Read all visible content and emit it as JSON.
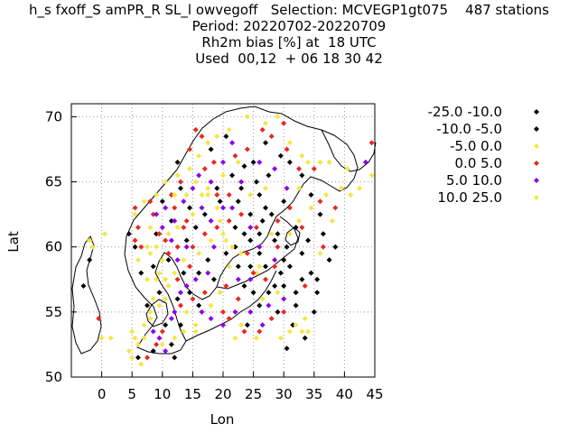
{
  "title": {
    "line1": "h_s fxoff_S amPR_R SL_l owvegoff   Selection: MCVEGP1gt075    487 stations",
    "line2": "Period: 20220702-20220709",
    "line3": "Rh2m bias [%] at  18 UTC",
    "line4": "Used  00,12  + 06 18 30 42"
  },
  "chart_data": {
    "type": "scatter",
    "xlabel": "Lon",
    "ylabel": "Lat",
    "xlim": [
      -5,
      45
    ],
    "ylim": [
      50,
      71
    ],
    "xticks": [
      0,
      5,
      10,
      15,
      20,
      25,
      30,
      35,
      40,
      45
    ],
    "yticks": [
      50,
      55,
      60,
      65,
      70
    ],
    "grid": true,
    "legend_position": "right",
    "map_background": "coastline outline of northern Europe / Scandinavia",
    "series": [
      {
        "name": "-25.0 -10.0",
        "color": "#000000",
        "points": [
          [
            33.5,
            53.0
          ],
          [
            30.5,
            52.2
          ],
          [
            31.5,
            54.0
          ],
          [
            35.0,
            55.0
          ],
          [
            29.5,
            58.0
          ],
          [
            27.5,
            56.5
          ],
          [
            35.5,
            56.5
          ],
          [
            37.5,
            59.0
          ],
          [
            38.5,
            60.0
          ],
          [
            36.5,
            61.0
          ],
          [
            33.0,
            59.5
          ],
          [
            32.0,
            61.5
          ],
          [
            29.0,
            61.0
          ],
          [
            27.0,
            63.0
          ],
          [
            26.0,
            64.0
          ],
          [
            24.5,
            62.5
          ],
          [
            22.5,
            63.5
          ],
          [
            27.5,
            65.5
          ],
          [
            25.0,
            66.5
          ],
          [
            23.5,
            66.2
          ],
          [
            22.0,
            61.5
          ],
          [
            22.5,
            58.5
          ],
          [
            23.5,
            57.0
          ],
          [
            24.5,
            58.5
          ],
          [
            24.0,
            54.0
          ],
          [
            19.5,
            63.5
          ],
          [
            14.0,
            60.5
          ],
          [
            16.0,
            58.0
          ],
          [
            12.5,
            56.0
          ],
          [
            9.5,
            56.5
          ],
          [
            11.0,
            59.0
          ],
          [
            12.0,
            51.5
          ],
          [
            8.5,
            52.0
          ],
          [
            6.5,
            58.0
          ],
          [
            5.5,
            60.0
          ],
          [
            10.0,
            63.5
          ],
          [
            13.0,
            64.5
          ],
          [
            12.5,
            66.5
          ],
          [
            26.0,
            61.0
          ],
          [
            28.5,
            60.5
          ],
          [
            30.5,
            60.0
          ],
          [
            31.0,
            58.5
          ],
          [
            34.5,
            58.0
          ],
          [
            32.0,
            56.5
          ],
          [
            29.0,
            55.0
          ],
          [
            26.0,
            55.5
          ],
          [
            28.5,
            57.0
          ]
        ]
      },
      {
        "name": "-10.0 -5.0",
        "color": "#000000",
        "points": [
          [
            32.0,
            55.5
          ],
          [
            33.0,
            57.5
          ],
          [
            35.5,
            57.5
          ],
          [
            30.0,
            59.0
          ],
          [
            27.0,
            58.5
          ],
          [
            26.0,
            59.5
          ],
          [
            24.5,
            60.5
          ],
          [
            23.5,
            61.0
          ],
          [
            26.5,
            62.0
          ],
          [
            28.0,
            62.5
          ],
          [
            30.0,
            63.5
          ],
          [
            25.5,
            65.0
          ],
          [
            21.5,
            65.5
          ],
          [
            23.0,
            64.5
          ],
          [
            19.0,
            64.5
          ],
          [
            17.0,
            62.5
          ],
          [
            15.5,
            61.5
          ],
          [
            13.5,
            58.0
          ],
          [
            17.5,
            59.0
          ],
          [
            14.5,
            56.5
          ],
          [
            10.5,
            54.0
          ],
          [
            6.0,
            51.5
          ],
          [
            7.5,
            55.5
          ],
          [
            8.5,
            58.5
          ],
          [
            4.5,
            61.0
          ],
          [
            -3.0,
            57.0
          ],
          [
            -2.0,
            59.0
          ],
          [
            9.0,
            61.0
          ],
          [
            11.5,
            62.0
          ],
          [
            14.5,
            63.0
          ],
          [
            18.0,
            67.5
          ],
          [
            20.5,
            68.5
          ],
          [
            27.0,
            68.0
          ],
          [
            29.5,
            67.0
          ],
          [
            31.0,
            66.5
          ],
          [
            33.0,
            65.5
          ],
          [
            34.5,
            64.0
          ],
          [
            36.0,
            62.5
          ],
          [
            22.0,
            60.0
          ],
          [
            20.5,
            59.5
          ],
          [
            18.5,
            57.5
          ],
          [
            16.0,
            55.5
          ],
          [
            13.0,
            54.0
          ],
          [
            11.5,
            52.5
          ],
          [
            25.0,
            56.5
          ],
          [
            30.0,
            57.0
          ],
          [
            34.0,
            60.5
          ]
        ]
      },
      {
        "name": "-5.0 0.0",
        "color": "#f5e642",
        "points": [
          [
            -2.0,
            60.5
          ],
          [
            -1.5,
            60.0
          ],
          [
            0.0,
            53.0
          ],
          [
            5.0,
            53.5
          ],
          [
            6.0,
            52.5
          ],
          [
            7.0,
            53.0
          ],
          [
            8.0,
            54.5
          ],
          [
            9.5,
            55.5
          ],
          [
            10.5,
            56.0
          ],
          [
            11.0,
            57.0
          ],
          [
            9.0,
            57.5
          ],
          [
            6.0,
            59.0
          ],
          [
            7.5,
            60.0
          ],
          [
            8.0,
            61.5
          ],
          [
            5.5,
            62.5
          ],
          [
            7.0,
            63.5
          ],
          [
            9.0,
            64.0
          ],
          [
            10.5,
            65.0
          ],
          [
            12.5,
            65.5
          ],
          [
            14.5,
            66.0
          ],
          [
            16.0,
            67.0
          ],
          [
            17.5,
            68.0
          ],
          [
            19.0,
            68.5
          ],
          [
            21.0,
            69.0
          ],
          [
            24.0,
            70.0
          ],
          [
            27.0,
            69.5
          ],
          [
            29.0,
            70.0
          ],
          [
            31.0,
            68.0
          ],
          [
            33.0,
            67.0
          ],
          [
            37.5,
            66.5
          ],
          [
            40.5,
            66.0
          ],
          [
            44.5,
            65.5
          ],
          [
            42.5,
            64.5
          ],
          [
            37.0,
            64.0
          ],
          [
            34.5,
            63.0
          ],
          [
            32.5,
            62.0
          ],
          [
            27.0,
            64.5
          ],
          [
            24.5,
            64.0
          ],
          [
            22.5,
            66.5
          ],
          [
            20.0,
            65.5
          ],
          [
            17.5,
            64.5
          ],
          [
            19.5,
            62.0
          ],
          [
            20.5,
            60.5
          ],
          [
            21.5,
            60.0
          ],
          [
            23.0,
            59.5
          ],
          [
            25.5,
            58.0
          ],
          [
            26.5,
            56.0
          ],
          [
            29.0,
            56.5
          ],
          [
            32.0,
            54.0
          ],
          [
            33.0,
            53.5
          ],
          [
            14.0,
            55.0
          ],
          [
            15.5,
            54.0
          ],
          [
            12.0,
            58.0
          ],
          [
            13.5,
            59.0
          ],
          [
            16.0,
            59.5
          ],
          [
            18.0,
            60.5
          ],
          [
            15.0,
            62.5
          ],
          [
            16.5,
            64.0
          ],
          [
            38.0,
            62.0
          ],
          [
            36.0,
            59.5
          ]
        ]
      },
      {
        "name": "0.0 5.0",
        "color": "#e8281e",
        "points": [
          [
            -0.5,
            54.5
          ],
          [
            5.5,
            60.5
          ],
          [
            6.5,
            60.0
          ],
          [
            6.0,
            61.5
          ],
          [
            5.5,
            63.0
          ],
          [
            8.5,
            62.5
          ],
          [
            8.0,
            63.5
          ],
          [
            9.5,
            61.0
          ],
          [
            10.5,
            60.5
          ],
          [
            11.0,
            59.5
          ],
          [
            12.5,
            60.0
          ],
          [
            13.5,
            61.5
          ],
          [
            14.0,
            62.0
          ],
          [
            12.0,
            63.0
          ],
          [
            11.5,
            64.0
          ],
          [
            13.0,
            65.0
          ],
          [
            14.5,
            67.5
          ],
          [
            16.5,
            68.5
          ],
          [
            15.5,
            69.0
          ],
          [
            17.0,
            66.0
          ],
          [
            18.5,
            66.5
          ],
          [
            19.0,
            64.0
          ],
          [
            21.0,
            64.0
          ],
          [
            22.0,
            67.0
          ],
          [
            24.0,
            67.5
          ],
          [
            26.5,
            69.0
          ],
          [
            28.0,
            68.5
          ],
          [
            30.0,
            69.5
          ],
          [
            30.5,
            67.5
          ],
          [
            32.5,
            66.0
          ],
          [
            35.0,
            66.0
          ],
          [
            44.5,
            68.0
          ],
          [
            38.5,
            63.0
          ],
          [
            36.0,
            63.5
          ],
          [
            31.0,
            63.0
          ],
          [
            29.0,
            62.0
          ],
          [
            25.5,
            61.5
          ],
          [
            24.0,
            59.5
          ],
          [
            25.0,
            58.0
          ],
          [
            27.0,
            57.5
          ],
          [
            28.5,
            58.5
          ],
          [
            30.0,
            55.0
          ],
          [
            28.0,
            54.5
          ],
          [
            26.0,
            53.5
          ],
          [
            23.5,
            53.5
          ],
          [
            21.0,
            54.5
          ],
          [
            20.0,
            55.0
          ],
          [
            17.0,
            56.5
          ],
          [
            15.0,
            56.0
          ],
          [
            13.0,
            55.5
          ],
          [
            10.0,
            53.5
          ],
          [
            9.0,
            52.5
          ],
          [
            7.5,
            51.5
          ],
          [
            12.5,
            57.5
          ],
          [
            14.5,
            58.5
          ],
          [
            15.0,
            60.0
          ],
          [
            17.0,
            61.0
          ],
          [
            19.0,
            61.5
          ],
          [
            21.0,
            62.0
          ],
          [
            23.0,
            62.5
          ],
          [
            22.5,
            56.0
          ],
          [
            20.5,
            57.0
          ],
          [
            29.0,
            60.0
          ],
          [
            33.0,
            61.5
          ],
          [
            36.5,
            60.0
          ],
          [
            33.5,
            57.0
          ]
        ]
      },
      {
        "name": "5.0 10.0",
        "color": "#8a00e6",
        "points": [
          [
            8.5,
            53.5
          ],
          [
            9.5,
            53.0
          ],
          [
            10.5,
            52.0
          ],
          [
            11.5,
            54.5
          ],
          [
            12.0,
            55.0
          ],
          [
            13.0,
            56.5
          ],
          [
            14.0,
            57.0
          ],
          [
            12.5,
            59.0
          ],
          [
            11.5,
            60.5
          ],
          [
            10.0,
            61.5
          ],
          [
            9.0,
            62.5
          ],
          [
            10.5,
            63.0
          ],
          [
            12.0,
            62.0
          ],
          [
            13.5,
            63.5
          ],
          [
            15.0,
            64.5
          ],
          [
            16.0,
            65.5
          ],
          [
            18.0,
            65.0
          ],
          [
            16.5,
            63.0
          ],
          [
            18.0,
            62.0
          ],
          [
            20.0,
            63.0
          ],
          [
            21.5,
            63.0
          ],
          [
            18.5,
            60.0
          ],
          [
            17.5,
            58.0
          ],
          [
            15.5,
            57.5
          ],
          [
            16.5,
            55.0
          ],
          [
            18.0,
            54.5
          ],
          [
            20.0,
            54.0
          ],
          [
            22.0,
            55.0
          ],
          [
            24.5,
            55.0
          ],
          [
            26.5,
            54.0
          ],
          [
            27.5,
            55.5
          ],
          [
            28.5,
            59.0
          ],
          [
            26.0,
            60.0
          ],
          [
            24.5,
            61.5
          ],
          [
            23.0,
            65.0
          ],
          [
            26.0,
            66.5
          ],
          [
            28.5,
            66.0
          ],
          [
            30.5,
            64.5
          ],
          [
            21.5,
            68.0
          ],
          [
            20.0,
            66.5
          ],
          [
            24.5,
            57.5
          ],
          [
            22.5,
            57.5
          ],
          [
            30.0,
            56.0
          ],
          [
            43.5,
            66.5
          ],
          [
            14.0,
            60.0
          ]
        ]
      },
      {
        "name": "10.0 25.0",
        "color": "#f5e642",
        "points": [
          [
            -1.5,
            60.0
          ],
          [
            0.5,
            61.0
          ],
          [
            1.5,
            53.0
          ],
          [
            4.5,
            52.0
          ],
          [
            5.0,
            51.5
          ],
          [
            6.5,
            51.0
          ],
          [
            5.5,
            53.0
          ],
          [
            7.0,
            54.0
          ],
          [
            8.0,
            55.0
          ],
          [
            8.5,
            56.0
          ],
          [
            7.5,
            57.5
          ],
          [
            9.5,
            58.0
          ],
          [
            8.0,
            59.5
          ],
          [
            10.0,
            59.0
          ],
          [
            11.0,
            61.0
          ],
          [
            12.5,
            61.5
          ],
          [
            14.0,
            64.0
          ],
          [
            15.5,
            65.0
          ],
          [
            17.5,
            64.0
          ],
          [
            19.0,
            63.0
          ],
          [
            20.0,
            61.0
          ],
          [
            21.0,
            58.5
          ],
          [
            19.5,
            56.5
          ],
          [
            18.0,
            55.5
          ],
          [
            15.5,
            53.5
          ],
          [
            13.5,
            53.5
          ],
          [
            12.0,
            53.0
          ],
          [
            10.0,
            52.5
          ],
          [
            26.0,
            58.5
          ],
          [
            28.0,
            61.0
          ],
          [
            31.0,
            61.0
          ],
          [
            32.5,
            64.5
          ],
          [
            34.0,
            66.5
          ],
          [
            36.0,
            66.5
          ],
          [
            39.5,
            64.5
          ],
          [
            41.0,
            64.0
          ],
          [
            33.5,
            54.5
          ],
          [
            34.0,
            53.5
          ],
          [
            31.0,
            53.5
          ],
          [
            29.5,
            53.0
          ],
          [
            23.0,
            54.0
          ],
          [
            22.0,
            53.0
          ],
          [
            25.5,
            53.0
          ],
          [
            10.5,
            57.5
          ],
          [
            9.0,
            60.0
          ],
          [
            12.0,
            64.0
          ]
        ]
      }
    ]
  }
}
